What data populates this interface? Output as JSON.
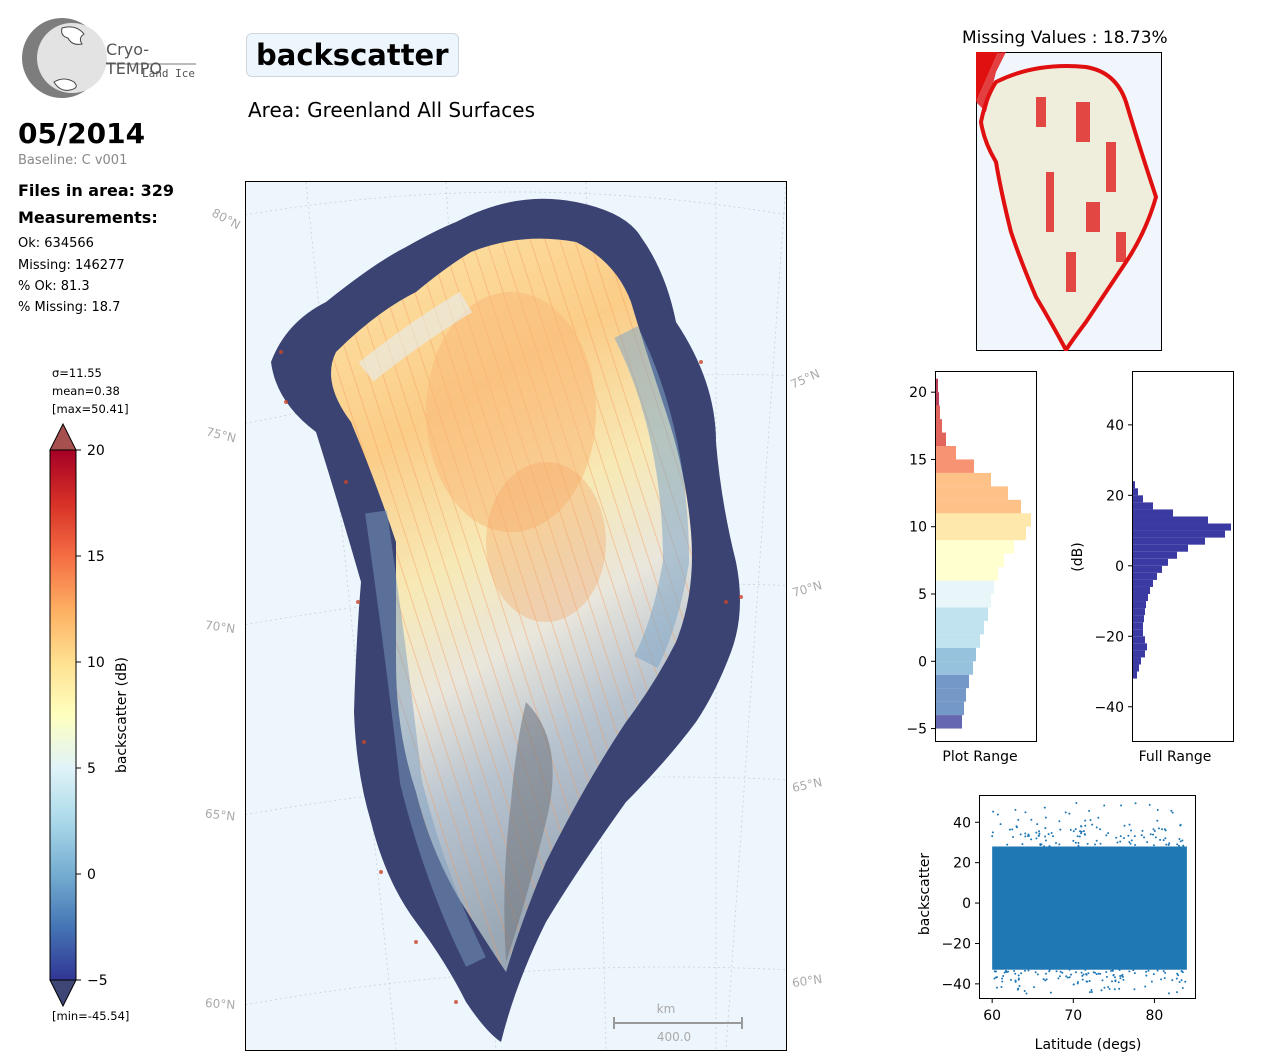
{
  "logo": {
    "title": "Cryo-TEMPO",
    "subtitle": "Land Ice"
  },
  "title": "backscatter",
  "area": "Area: Greenland All Surfaces",
  "date": "05/2014",
  "baseline": "Baseline: C v001",
  "files_in_area": "Files in area: 329",
  "measurements_heading": "Measurements:",
  "stats": {
    "ok": "Ok: 634566",
    "missing": "Missing: 146277",
    "pct_ok": "% Ok: 81.3",
    "pct_missing": "% Missing: 18.7"
  },
  "colorbar": {
    "sigma": "σ=11.55",
    "mean": "mean=0.38",
    "max": "[max=50.41]",
    "min": "[min=-45.54]",
    "label": "backscatter (dB)",
    "range": [
      -5,
      20
    ],
    "ticks": [
      "20",
      "15",
      "10",
      "5",
      "0",
      "−5"
    ],
    "colors": [
      "#313695",
      "#4575b4",
      "#74add1",
      "#abd9e9",
      "#e0f3f8",
      "#ffffbf",
      "#fee090",
      "#fdae61",
      "#f46d43",
      "#d73027",
      "#a50026"
    ]
  },
  "map": {
    "lat_labels_left": [
      "80°N",
      "75°N",
      "70°N",
      "65°N",
      "60°N"
    ],
    "lat_labels_right": [
      "75°N",
      "70°N",
      "65°N",
      "60°N"
    ],
    "scalebar_unit": "km",
    "scalebar_value": "400.0",
    "ocean_color": "#eef6fd"
  },
  "missing_map": {
    "title": "Missing Values : 18.73%",
    "missing_color": "#ff0000",
    "land_color": "#efeedd"
  },
  "chart_data": [
    {
      "type": "bar",
      "orientation": "horizontal",
      "name": "plot_range_histogram",
      "xlabel": "Plot Range",
      "ylim": [
        -6,
        21.5
      ],
      "yticks": [
        "20",
        "15",
        "10",
        "5",
        "0",
        "−5"
      ],
      "bins": [
        -5,
        -4,
        -3,
        -2,
        -1,
        0,
        1,
        2,
        3,
        4,
        5,
        6,
        7,
        8,
        9,
        10,
        11,
        12,
        13,
        14,
        15,
        16,
        17,
        18,
        19,
        20
      ],
      "counts": [
        0.26,
        0.28,
        0.3,
        0.33,
        0.37,
        0.4,
        0.44,
        0.48,
        0.52,
        0.55,
        0.58,
        0.62,
        0.68,
        0.78,
        0.9,
        0.95,
        0.85,
        0.72,
        0.55,
        0.38,
        0.2,
        0.1,
        0.06,
        0.04,
        0.03,
        0.02
      ]
    },
    {
      "type": "bar",
      "orientation": "horizontal",
      "name": "full_range_histogram",
      "xlabel": "Full Range",
      "ylabel": "(dB)",
      "ylim": [
        -50,
        55
      ],
      "yticks": [
        "40",
        "20",
        "0",
        "−20",
        "−40"
      ],
      "bins": [
        -32,
        -30,
        -28,
        -26,
        -24,
        -22,
        -20,
        -18,
        -16,
        -14,
        -12,
        -10,
        -8,
        -6,
        -4,
        -2,
        0,
        2,
        4,
        6,
        8,
        10,
        12,
        14,
        16,
        18,
        20,
        22
      ],
      "counts": [
        0.04,
        0.06,
        0.08,
        0.12,
        0.14,
        0.12,
        0.1,
        0.1,
        0.11,
        0.12,
        0.13,
        0.15,
        0.17,
        0.2,
        0.24,
        0.29,
        0.35,
        0.44,
        0.55,
        0.72,
        0.92,
        0.98,
        0.75,
        0.4,
        0.2,
        0.1,
        0.05,
        0.02
      ]
    },
    {
      "type": "scatter",
      "name": "backscatter_vs_latitude",
      "xlabel": "Latitude (degs)",
      "ylabel": "backscatter",
      "xlim": [
        58.5,
        85
      ],
      "ylim": [
        -47,
        53
      ],
      "xticks": [
        "60",
        "70",
        "80"
      ],
      "yticks": [
        "40",
        "20",
        "0",
        "−20",
        "−40"
      ],
      "color": "#1f77b4",
      "x_range": [
        60,
        84
      ],
      "y_band": [
        -33,
        28
      ],
      "y_extremes": [
        -45.54,
        50.41
      ]
    }
  ]
}
